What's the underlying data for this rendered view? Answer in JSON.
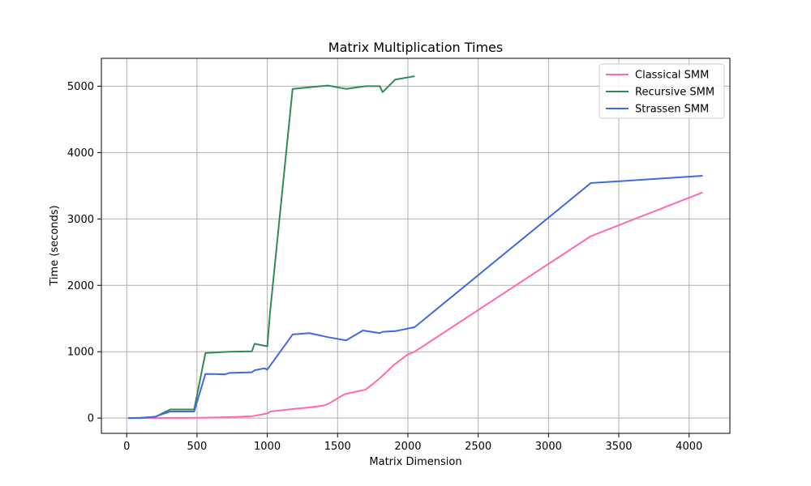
{
  "chart_data": {
    "type": "line",
    "title": "Matrix Multiplication Times",
    "xlabel": "Matrix Dimension",
    "ylabel": "Time (seconds)",
    "xlim": [
      -180,
      4290
    ],
    "ylim": [
      -230,
      5420
    ],
    "xticks": [
      0,
      500,
      1000,
      1500,
      2000,
      2500,
      3000,
      3500,
      4000
    ],
    "yticks": [
      0,
      1000,
      2000,
      3000,
      4000,
      5000
    ],
    "grid": true,
    "legend_position": "top-right",
    "series": [
      {
        "name": "Classical SMM",
        "color": "#ff69b4",
        "x": [
          10,
          100,
          200,
          300,
          400,
          500,
          600,
          700,
          800,
          900,
          1000,
          1024,
          1200,
          1300,
          1400,
          1430,
          1550,
          1700,
          1800,
          1900,
          2000,
          2048,
          3300,
          4096
        ],
        "y": [
          0,
          1,
          2,
          3,
          4,
          5,
          8,
          12,
          20,
          30,
          70,
          100,
          140,
          160,
          190,
          210,
          360,
          430,
          600,
          800,
          960,
          1000,
          2740,
          3400
        ]
      },
      {
        "name": "Recursive SMM",
        "color": "#2e8b57",
        "x": [
          10,
          100,
          200,
          310,
          480,
          560,
          730,
          890,
          910,
          1000,
          1020,
          1180,
          1430,
          1560,
          1700,
          1800,
          1820,
          1910,
          2048
        ],
        "y": [
          0,
          2,
          15,
          130,
          130,
          980,
          1000,
          1005,
          1120,
          1080,
          1600,
          4960,
          5010,
          4960,
          5000,
          5000,
          4910,
          5100,
          5150
        ]
      },
      {
        "name": "Strassen SMM",
        "color": "#4169e1",
        "x": [
          10,
          100,
          200,
          310,
          480,
          560,
          700,
          730,
          890,
          910,
          980,
          1000,
          1024,
          1180,
          1300,
          1430,
          1560,
          1680,
          1800,
          1820,
          1910,
          2048,
          3300,
          4096
        ],
        "y": [
          0,
          5,
          20,
          100,
          100,
          665,
          660,
          680,
          690,
          720,
          750,
          730,
          800,
          1260,
          1280,
          1220,
          1170,
          1320,
          1280,
          1300,
          1310,
          1370,
          3540,
          3650
        ]
      }
    ]
  }
}
